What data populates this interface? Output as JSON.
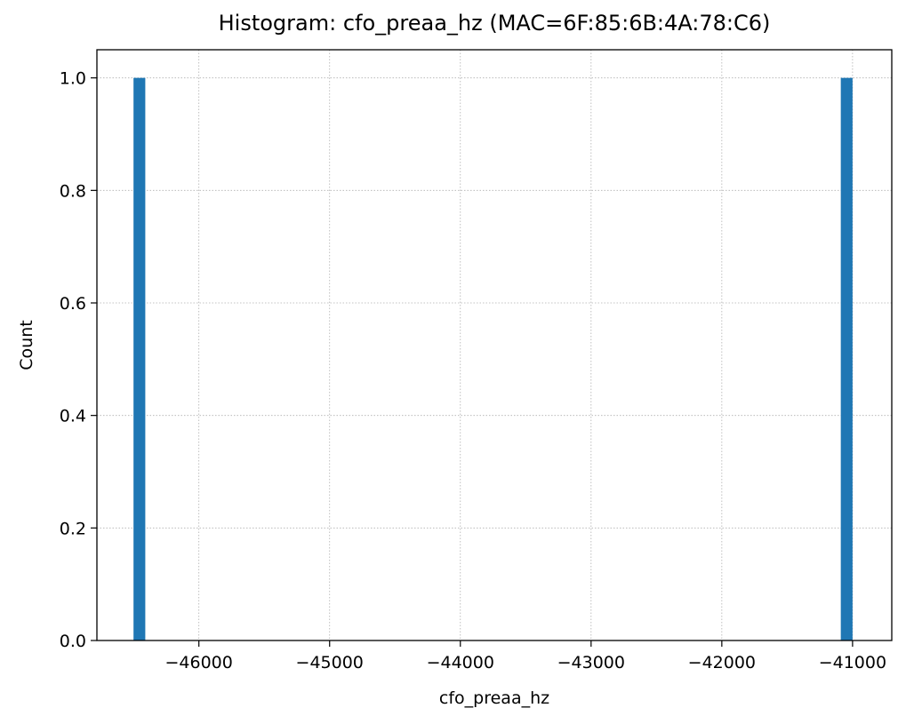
{
  "chart_data": {
    "type": "bar",
    "title": "Histogram: cfo_preaa_hz (MAC=6F:85:6B:4A:78:C6)",
    "xlabel": "cfo_preaa_hz",
    "ylabel": "Count",
    "xlim": [
      -46780,
      -40700
    ],
    "ylim": [
      0,
      1.05
    ],
    "xticks": [
      -46000,
      -45000,
      -44000,
      -43000,
      -42000,
      -41000
    ],
    "xtick_labels": [
      "−46000",
      "−45000",
      "−44000",
      "−43000",
      "−42000",
      "−41000"
    ],
    "yticks": [
      0.0,
      0.2,
      0.4,
      0.6,
      0.8,
      1.0
    ],
    "ytick_labels": [
      "0.0",
      "0.2",
      "0.4",
      "0.6",
      "0.8",
      "1.0"
    ],
    "bins": [
      {
        "x0": -46500,
        "x1": -46410,
        "count": 1
      },
      {
        "x0": -41090,
        "x1": -41000,
        "count": 1
      }
    ],
    "grid": true,
    "bar_color": "#1f77b4",
    "grid_color": "#b0b0b0"
  }
}
